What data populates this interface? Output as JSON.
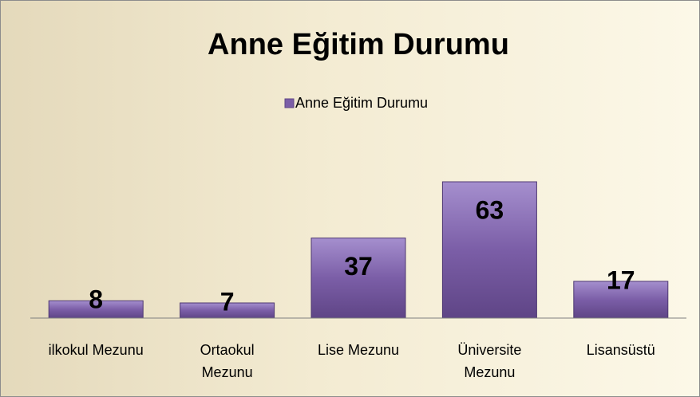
{
  "chart_data": {
    "type": "bar",
    "title": "Anne Eğitim Durumu",
    "categories": [
      "ilkokul Mezunu",
      "Ortaokul Mezunu",
      "Lise Mezunu",
      "Üniversite Mezunu",
      "Lisansüstü"
    ],
    "series": [
      {
        "name": "Anne Eğitim Durumu",
        "color": "#7b5ea7",
        "values": [
          8,
          7,
          37,
          63,
          17
        ]
      }
    ]
  }
}
